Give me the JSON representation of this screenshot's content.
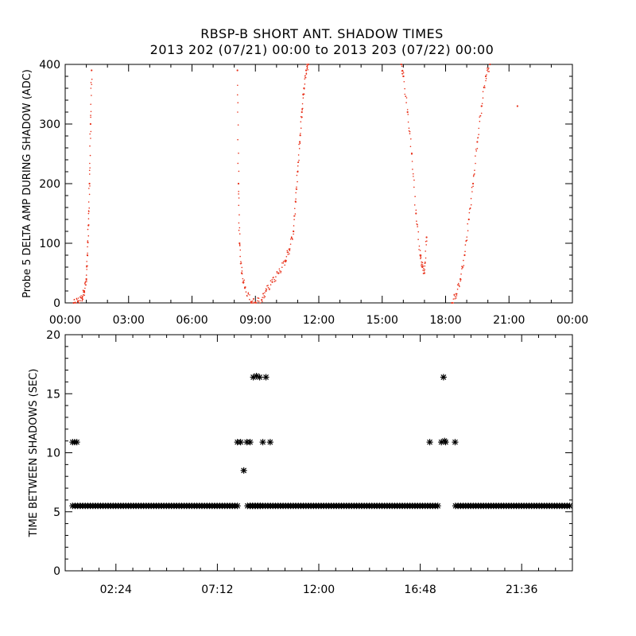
{
  "title_line1": "RBSP-B SHORT ANT. SHADOW TIMES",
  "title_line2": "2013 202 (07/21) 00:00 to 2013 203 (07/22) 00:00",
  "colors": {
    "top_points": "#e8311a",
    "bottom_points": "#000000",
    "axes": "#000000"
  },
  "chart_data": [
    {
      "type": "scatter",
      "ylabel": "Probe 5 DELTA AMP DURING SHADOW (ADC)",
      "xlabel": "",
      "x_units": "hours since 2013-07-21 00:00",
      "xlim": [
        0,
        24
      ],
      "ylim": [
        0,
        400
      ],
      "x_tick_labels": [
        "00:00",
        "03:00",
        "06:00",
        "09:00",
        "12:00",
        "15:00",
        "18:00",
        "21:00",
        "00:00"
      ],
      "y_tick_labels": [
        "0",
        "100",
        "200",
        "300",
        "400"
      ],
      "grid": false,
      "series": [
        {
          "x": [
            0.4,
            0.6,
            0.8,
            0.9,
            1.0,
            1.05,
            1.1,
            1.15,
            1.2,
            1.25,
            8.15,
            8.2,
            8.25,
            8.35,
            8.5,
            8.8,
            9.0,
            9.3,
            9.5,
            9.8,
            10.1,
            10.4,
            10.6,
            10.8,
            10.9,
            11.0,
            11.1,
            11.2,
            11.3,
            11.4,
            11.5,
            15.9,
            16.0,
            16.2,
            16.4,
            16.6,
            16.8,
            16.9,
            17.0,
            17.1,
            18.3,
            18.5,
            18.7,
            18.9,
            19.1,
            19.3,
            19.5,
            19.7,
            19.9,
            20.1,
            21.4
          ],
          "y": [
            0,
            2,
            8,
            20,
            40,
            80,
            130,
            200,
            300,
            390,
            390,
            200,
            100,
            50,
            25,
            2,
            1,
            5,
            20,
            35,
            50,
            70,
            90,
            120,
            170,
            220,
            270,
            320,
            360,
            390,
            400,
            400,
            380,
            320,
            250,
            150,
            80,
            60,
            50,
            110,
            0,
            15,
            40,
            80,
            140,
            200,
            270,
            330,
            380,
            400,
            330
          ]
        }
      ]
    },
    {
      "type": "scatter",
      "ylabel": "TIME BETWEEN SHADOWS (SEC)",
      "xlabel": "",
      "x_units": "hours since 2013-07-21 00:00",
      "xlim": [
        0,
        24
      ],
      "ylim": [
        0,
        20
      ],
      "x_tick_labels": [
        "02:24",
        "07:12",
        "12:00",
        "16:48",
        "21:36"
      ],
      "y_tick_labels": [
        "0",
        "5",
        "10",
        "15",
        "20"
      ],
      "grid": false,
      "series": [
        {
          "x": [
            0.35,
            0.45,
            0.55,
            8.15,
            8.3,
            8.45,
            8.6,
            8.75,
            8.9,
            9.05,
            9.2,
            9.35,
            9.5,
            9.7,
            17.25,
            17.8,
            17.9,
            17.95,
            18.0,
            18.45
          ],
          "y": [
            10.9,
            10.9,
            10.9,
            10.9,
            10.9,
            8.5,
            10.9,
            10.9,
            16.4,
            16.5,
            16.4,
            10.9,
            16.4,
            10.9,
            10.9,
            10.9,
            16.4,
            11.0,
            10.9,
            10.9
          ]
        },
        {
          "x_range": [
            0.35,
            23.9
          ],
          "y": 5.5,
          "gaps": [
            [
              8.25,
              8.6
            ],
            [
              17.65,
              18.35
            ]
          ]
        },
        {
          "x_range": [
            8.75,
            9.25
          ],
          "y": 5.5
        }
      ]
    }
  ]
}
